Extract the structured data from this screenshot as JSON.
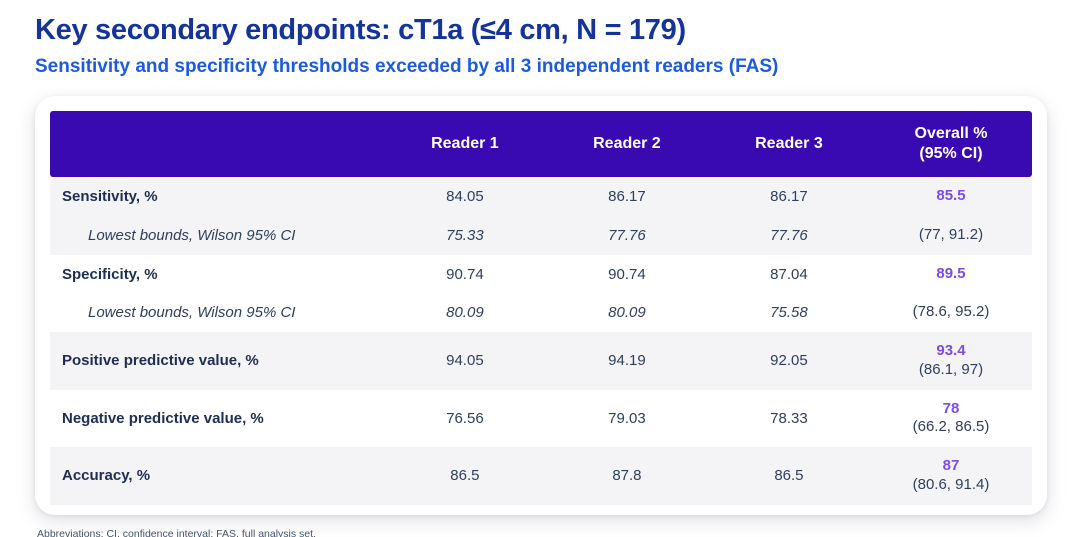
{
  "title": "Key secondary endpoints: cT1a (≤4 cm, N = 179)",
  "subtitle": "Sensitivity and specificity thresholds exceeded by all 3 independent readers (FAS)",
  "table": {
    "columns": [
      "Reader 1",
      "Reader 2",
      "Reader 3"
    ],
    "overall_header": {
      "line1": "Overall %",
      "line2": "(95% CI)"
    },
    "rows": [
      {
        "type": "main",
        "label": "Sensitivity, %",
        "values": [
          "84.05",
          "86.17",
          "86.17"
        ],
        "overall": "85.5",
        "overall_ci": "",
        "stripe": true
      },
      {
        "type": "sub",
        "label": "Lowest bounds, Wilson 95% CI",
        "values": [
          "75.33",
          "77.76",
          "77.76"
        ],
        "overall": "",
        "overall_ci": "(77, 91.2)",
        "stripe": true
      },
      {
        "type": "main",
        "label": "Specificity, %",
        "values": [
          "90.74",
          "90.74",
          "87.04"
        ],
        "overall": "89.5",
        "overall_ci": "",
        "stripe": false
      },
      {
        "type": "sub",
        "label": "Lowest bounds, Wilson 95% CI",
        "values": [
          "80.09",
          "80.09",
          "75.58"
        ],
        "overall": "",
        "overall_ci": "(78.6, 95.2)",
        "stripe": false
      },
      {
        "type": "main",
        "label": "Positive predictive value, %",
        "values": [
          "94.05",
          "94.19",
          "92.05"
        ],
        "overall": "93.4",
        "overall_ci": "(86.1, 97)",
        "stripe": true
      },
      {
        "type": "main",
        "label": "Negative predictive value, %",
        "values": [
          "76.56",
          "79.03",
          "78.33"
        ],
        "overall": "78",
        "overall_ci": "(66.2, 86.5)",
        "stripe": false
      },
      {
        "type": "main",
        "label": "Accuracy, %",
        "values": [
          "86.5",
          "87.8",
          "86.5"
        ],
        "overall": "87",
        "overall_ci": "(80.6, 91.4)",
        "stripe": true
      }
    ]
  },
  "footer": "Abbreviations:  CI, confidence interval;  FAS, full analysis set.",
  "colors": {
    "header_bg": "#390AB1",
    "accent_purple": "#7B4BEC",
    "title_color": "#14339B",
    "subtitle_color": "#1A5BE0",
    "label_color": "#1F2D54",
    "value_color": "#2F3E5C",
    "stripe_bg": "#F4F4F7",
    "footer_color": "#44536B"
  }
}
